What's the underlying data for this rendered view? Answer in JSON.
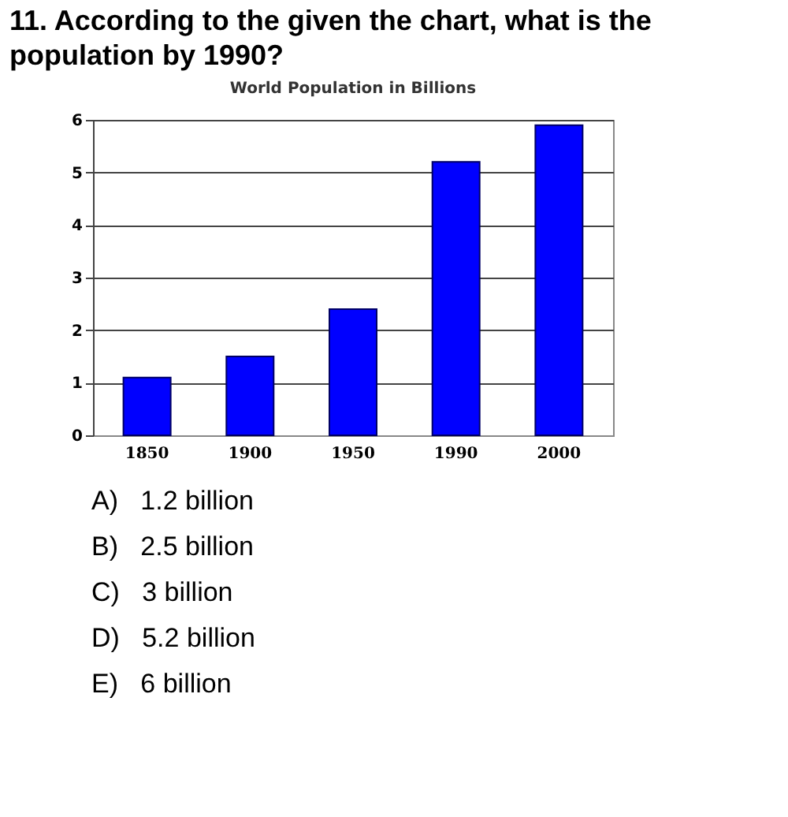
{
  "chart_data": {
    "type": "bar",
    "title": "11. According to the given the chart, what is the population by 1990?",
    "subtitle": "World Population in Billions",
    "categories": [
      "1850",
      "1900",
      "1950",
      "1990",
      "2000"
    ],
    "values": [
      1.1,
      1.5,
      2.4,
      5.2,
      5.9
    ],
    "color": "#0000ff",
    "ylim": [
      0,
      6
    ],
    "yticks": [
      0,
      1,
      2,
      3,
      4,
      5,
      6
    ],
    "grid": "y",
    "annotations": [
      "A)   1.2 billion",
      "B)   2.5 billion",
      "C)   3 billion",
      "D)   5.2 billion",
      "E)   6 billion"
    ]
  }
}
